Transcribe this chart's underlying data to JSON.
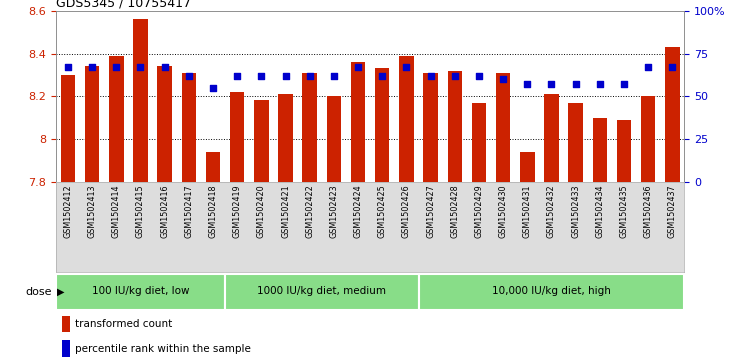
{
  "title": "GDS5345 / 10755417",
  "samples": [
    "GSM1502412",
    "GSM1502413",
    "GSM1502414",
    "GSM1502415",
    "GSM1502416",
    "GSM1502417",
    "GSM1502418",
    "GSM1502419",
    "GSM1502420",
    "GSM1502421",
    "GSM1502422",
    "GSM1502423",
    "GSM1502424",
    "GSM1502425",
    "GSM1502426",
    "GSM1502427",
    "GSM1502428",
    "GSM1502429",
    "GSM1502430",
    "GSM1502431",
    "GSM1502432",
    "GSM1502433",
    "GSM1502434",
    "GSM1502435",
    "GSM1502436",
    "GSM1502437"
  ],
  "bar_values": [
    8.3,
    8.34,
    8.39,
    8.56,
    8.34,
    8.31,
    7.94,
    8.22,
    8.18,
    8.21,
    8.31,
    8.2,
    8.36,
    8.33,
    8.39,
    8.31,
    8.32,
    8.17,
    8.31,
    7.94,
    8.21,
    8.17,
    8.1,
    8.09,
    8.2,
    8.43
  ],
  "percentile_values": [
    67,
    67,
    67,
    67,
    67,
    62,
    55,
    62,
    62,
    62,
    62,
    62,
    67,
    62,
    67,
    62,
    62,
    62,
    60,
    57,
    57,
    57,
    57,
    57,
    67,
    67
  ],
  "bar_color": "#cc2200",
  "dot_color": "#0000cc",
  "ylim_left": [
    7.8,
    8.6
  ],
  "ylim_right": [
    0,
    100
  ],
  "yticks_left": [
    7.8,
    8.0,
    8.2,
    8.4,
    8.6
  ],
  "ytick_labels_left": [
    "7.8",
    "8",
    "8.2",
    "8.4",
    "8.6"
  ],
  "yticks_right": [
    0,
    25,
    50,
    75,
    100
  ],
  "ytick_labels_right": [
    "0",
    "25",
    "50",
    "75",
    "100%"
  ],
  "groups": [
    {
      "label": "100 IU/kg diet, low",
      "start": 0,
      "end": 7
    },
    {
      "label": "1000 IU/kg diet, medium",
      "start": 7,
      "end": 15
    },
    {
      "label": "10,000 IU/kg diet, high",
      "start": 15,
      "end": 26
    }
  ],
  "group_color": "#88dd88",
  "dose_label": "dose",
  "legend_items": [
    {
      "label": "transformed count",
      "color": "#cc2200"
    },
    {
      "label": "percentile rank within the sample",
      "color": "#0000cc"
    }
  ],
  "background_color": "#ffffff",
  "xtick_bg_color": "#dddddd",
  "grid_yticks": [
    8.0,
    8.2,
    8.4
  ]
}
